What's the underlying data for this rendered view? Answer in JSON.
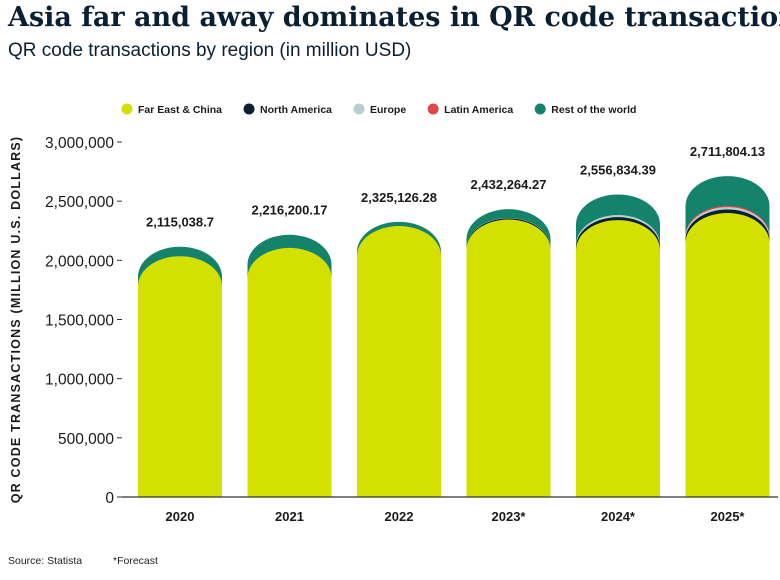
{
  "title": "Asia far and away dominates in QR code transactions",
  "subtitle": "QR code transactions by region (in million USD)",
  "footer": {
    "source": "Source: Statista",
    "note": "*Forecast"
  },
  "colors": {
    "Far East & China": "#d4e000",
    "North America": "#0b1f33",
    "Europe": "#b9cfcf",
    "Latin America": "#e0474c",
    "Rest of the world": "#15836b"
  },
  "chart_data": {
    "type": "bar",
    "stacked": true,
    "categories": [
      "2020",
      "2021",
      "2022",
      "2023*",
      "2024*",
      "2025*"
    ],
    "series": [
      {
        "name": "Far East & China",
        "values": [
          2035000,
          2105000,
          2290000,
          2345000,
          2340000,
          2400000
        ]
      },
      {
        "name": "North America",
        "values": [
          0,
          0,
          0,
          10000,
          25000,
          30000
        ]
      },
      {
        "name": "Europe",
        "values": [
          0,
          0,
          0,
          3000,
          18000,
          20000
        ]
      },
      {
        "name": "Latin America",
        "values": [
          0,
          0,
          0,
          0,
          0,
          10000
        ]
      },
      {
        "name": "Rest of the world",
        "values": [
          80038.7,
          111200.17,
          35126.28,
          74264.27,
          173834.39,
          251804.13
        ]
      }
    ],
    "totals": [
      "2,115,038.7",
      "2,216,200.17",
      "2,325,126.28",
      "2,432,264.27",
      "2,556,834.39",
      "2,711,804.13"
    ],
    "ylabel": "QR CODE TRANSACTIONS (MILLION U.S. DOLLARS)",
    "ylim": [
      0,
      3000000
    ],
    "yticks": [
      0,
      500000,
      1000000,
      1500000,
      2000000,
      2500000,
      3000000
    ],
    "ytick_labels": [
      "0",
      "500,000",
      "1,000,000",
      "1,500,000",
      "2,000,000",
      "2,500,000",
      "3,000,000"
    ],
    "legend_position": "top",
    "grid": false
  }
}
